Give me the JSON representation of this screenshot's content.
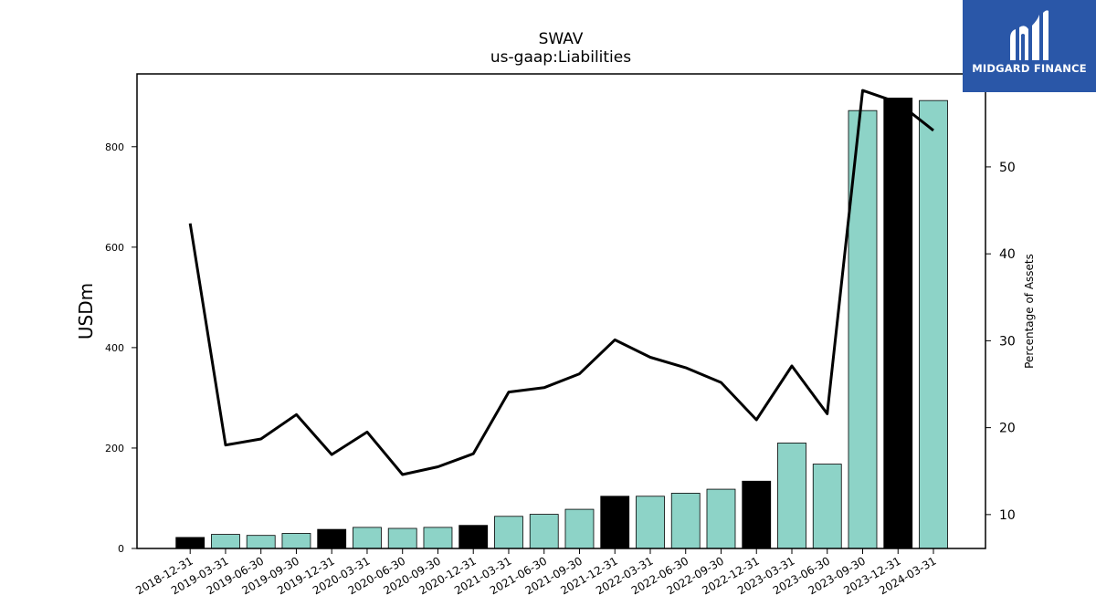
{
  "chart_data": {
    "type": "bar",
    "title": "SWAV",
    "subtitle": "us-gaap:Liabilities",
    "ylabel": "USDm",
    "y2label": "Percentage of Assets",
    "categories": [
      "2018-12-31",
      "2019-03-31",
      "2019-06-30",
      "2019-09-30",
      "2019-12-31",
      "2020-03-31",
      "2020-06-30",
      "2020-09-30",
      "2020-12-31",
      "2021-03-31",
      "2021-06-30",
      "2021-09-30",
      "2021-12-31",
      "2022-03-31",
      "2022-06-30",
      "2022-09-30",
      "2022-12-31",
      "2023-03-31",
      "2023-06-30",
      "2023-09-30",
      "2023-12-31",
      "2024-03-31"
    ],
    "series": [
      {
        "values": [
          22,
          28,
          26,
          30,
          38,
          42,
          40,
          42,
          46,
          64,
          68,
          78,
          104,
          104,
          110,
          118,
          134,
          210,
          168,
          872,
          897,
          892
        ],
        "axis": "left"
      },
      {
        "values": [
          43.5,
          18.0,
          18.7,
          21.5,
          16.9,
          19.5,
          14.6,
          15.5,
          17.0,
          24.1,
          24.6,
          26.2,
          30.1,
          28.1,
          26.9,
          25.2,
          20.9,
          27.1,
          21.6,
          58.8,
          57.4,
          54.2
        ],
        "axis": "right",
        "style": "line"
      }
    ],
    "year_end_highlight": [
      true,
      false,
      false,
      false,
      true,
      false,
      false,
      false,
      true,
      false,
      false,
      false,
      true,
      false,
      false,
      false,
      true,
      false,
      false,
      false,
      true,
      false
    ],
    "ylim": [
      0,
      945
    ],
    "y2lim": [
      6.1,
      60.7
    ],
    "yticks": [
      0,
      200,
      400,
      600,
      800
    ],
    "y2ticks": [
      10,
      20,
      30,
      40,
      50
    ],
    "colors": {
      "bar": "#8dd3c7",
      "highlight_bar": "#000000",
      "line": "#000000"
    }
  },
  "logo": {
    "text": "MIDGARD FINANCE",
    "icon": "midgard-logo-icon"
  }
}
